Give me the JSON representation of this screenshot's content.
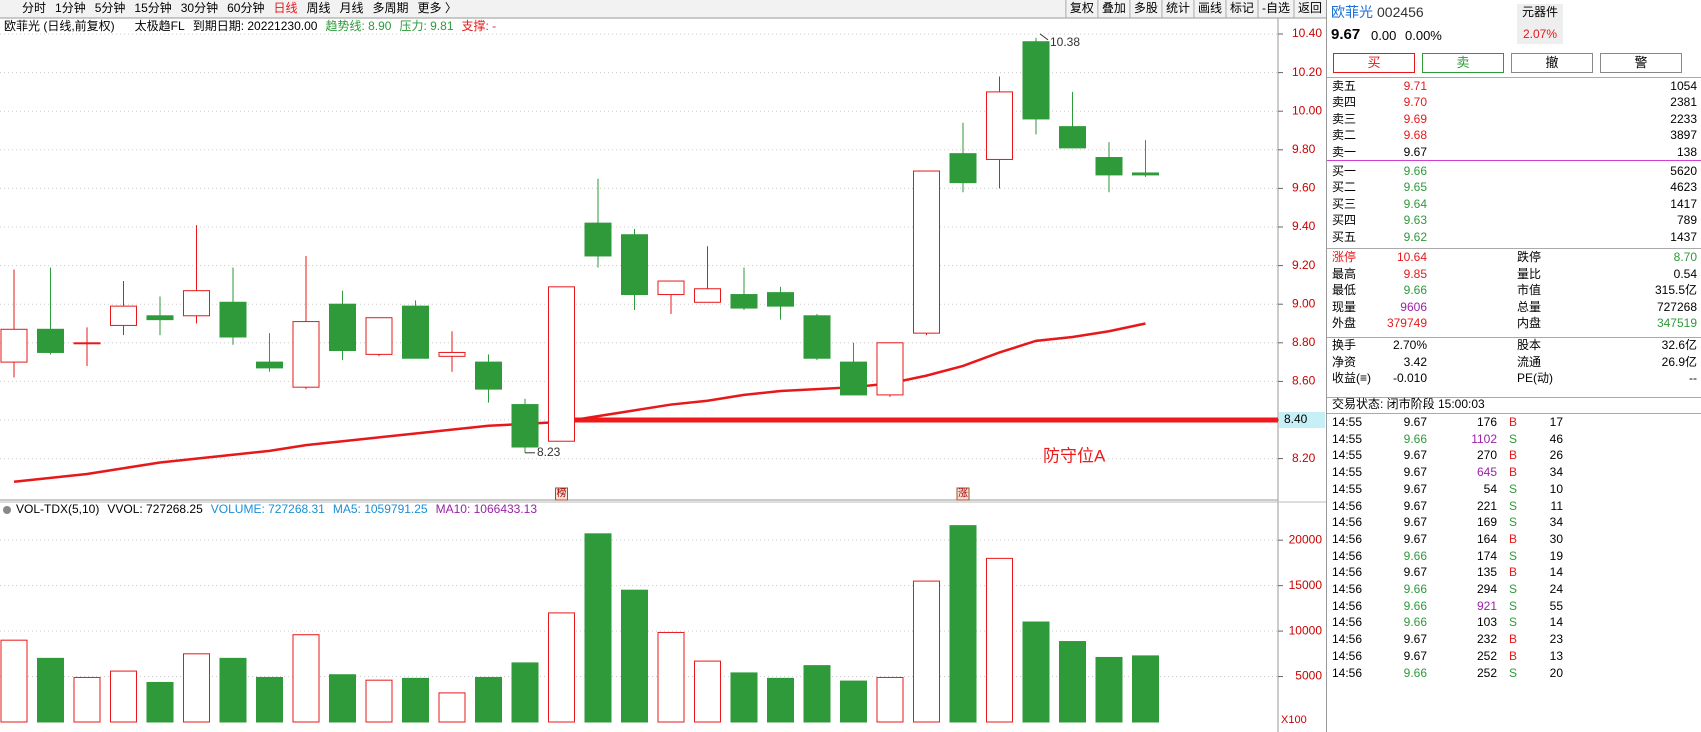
{
  "toolbar": {
    "periods": [
      "分时",
      "1分钟",
      "5分钟",
      "15分钟",
      "30分钟",
      "60分钟",
      "日线",
      "周线",
      "月线",
      "多周期",
      "更多 〉"
    ],
    "active": 6,
    "tools": [
      "复权",
      "叠加",
      "多股",
      "统计",
      "画线",
      "标记",
      "-自选",
      "返回"
    ]
  },
  "info": {
    "name": "欧菲光 (日线,前复权)",
    "indicator": "太极趋FL",
    "expiry": "到期日期: 20221230.00",
    "trend": "趋势线: 8.90",
    "pressure": "压力: 9.81",
    "support": "支撑: -"
  },
  "kline": {
    "type": "candlestick",
    "up_color": "#e8181a",
    "down_color": "#2e9a3a",
    "candles": [
      {
        "open": 8.7,
        "high": 9.18,
        "low": 8.62,
        "close": 8.87
      },
      {
        "open": 8.87,
        "high": 9.19,
        "low": 8.74,
        "close": 8.75
      },
      {
        "open": 8.8,
        "high": 8.88,
        "low": 8.68,
        "close": 8.8
      },
      {
        "open": 8.89,
        "high": 9.12,
        "low": 8.84,
        "close": 8.99
      },
      {
        "open": 8.94,
        "high": 9.04,
        "low": 8.84,
        "close": 8.92
      },
      {
        "open": 8.94,
        "high": 9.41,
        "low": 8.9,
        "close": 9.07
      },
      {
        "open": 9.01,
        "high": 9.19,
        "low": 8.79,
        "close": 8.83
      },
      {
        "open": 8.7,
        "high": 8.85,
        "low": 8.65,
        "close": 8.67
      },
      {
        "open": 8.57,
        "high": 9.25,
        "low": 8.56,
        "close": 8.91
      },
      {
        "open": 9.0,
        "high": 9.07,
        "low": 8.71,
        "close": 8.76
      },
      {
        "open": 8.74,
        "high": 8.93,
        "low": 8.73,
        "close": 8.93
      },
      {
        "open": 8.99,
        "high": 9.02,
        "low": 8.72,
        "close": 8.72
      },
      {
        "open": 8.73,
        "high": 8.86,
        "low": 8.65,
        "close": 8.75
      },
      {
        "open": 8.7,
        "high": 8.74,
        "low": 8.49,
        "close": 8.56
      },
      {
        "open": 8.48,
        "high": 8.51,
        "low": 8.23,
        "close": 8.26
      },
      {
        "open": 8.29,
        "high": 9.09,
        "low": 8.29,
        "close": 9.09
      },
      {
        "open": 9.42,
        "high": 9.65,
        "low": 9.19,
        "close": 9.25
      },
      {
        "open": 9.36,
        "high": 9.39,
        "low": 8.97,
        "close": 9.05
      },
      {
        "open": 9.05,
        "high": 9.12,
        "low": 8.95,
        "close": 9.12
      },
      {
        "open": 9.01,
        "high": 9.3,
        "low": 9.01,
        "close": 9.08
      },
      {
        "open": 9.05,
        "high": 9.19,
        "low": 8.97,
        "close": 8.98
      },
      {
        "open": 9.06,
        "high": 9.09,
        "low": 8.92,
        "close": 8.99
      },
      {
        "open": 8.94,
        "high": 8.95,
        "low": 8.71,
        "close": 8.72
      },
      {
        "open": 8.7,
        "high": 8.8,
        "low": 8.53,
        "close": 8.53
      },
      {
        "open": 8.53,
        "high": 8.8,
        "low": 8.52,
        "close": 8.8
      },
      {
        "open": 8.85,
        "high": 9.69,
        "low": 8.84,
        "close": 9.69
      },
      {
        "open": 9.78,
        "high": 9.94,
        "low": 9.58,
        "close": 9.63
      },
      {
        "open": 9.75,
        "high": 10.18,
        "low": 9.6,
        "close": 10.1
      },
      {
        "open": 10.36,
        "high": 10.38,
        "low": 9.88,
        "close": 9.96
      },
      {
        "open": 9.92,
        "high": 10.1,
        "low": 9.81,
        "close": 9.81
      },
      {
        "open": 9.76,
        "high": 9.84,
        "low": 9.58,
        "close": 9.67
      },
      {
        "open": 9.68,
        "high": 9.85,
        "low": 9.66,
        "close": 9.67
      }
    ],
    "ma": [
      8.08,
      8.1,
      8.12,
      8.15,
      8.18,
      8.2,
      8.22,
      8.24,
      8.27,
      8.29,
      8.31,
      8.33,
      8.35,
      8.37,
      8.38,
      8.39,
      8.42,
      8.45,
      8.48,
      8.5,
      8.53,
      8.55,
      8.56,
      8.57,
      8.59,
      8.63,
      8.68,
      8.75,
      8.81,
      8.83,
      8.86,
      8.9
    ],
    "ma_color": "#e8181a",
    "ylim": [
      8.0,
      10.5
    ],
    "yticks": [
      {
        "value": 8.2,
        "label": "8.20"
      },
      {
        "value": 8.4,
        "label": "8.40"
      },
      {
        "value": 8.6,
        "label": "8.60"
      },
      {
        "value": 8.8,
        "label": "8.80"
      },
      {
        "value": 9.0,
        "label": "9.00"
      },
      {
        "value": 9.2,
        "label": "9.20"
      },
      {
        "value": 9.4,
        "label": "9.40"
      },
      {
        "value": 9.6,
        "label": "9.60"
      },
      {
        "value": 9.8,
        "label": "9.80"
      },
      {
        "value": 10.0,
        "label": "10.00"
      },
      {
        "value": 10.2,
        "label": "10.20"
      },
      {
        "value": 10.4,
        "label": "10.40"
      }
    ],
    "defense": {
      "value": 8.4,
      "label": "8.40",
      "text": "防守位A"
    },
    "markers": [
      {
        "index": 15,
        "label": "榜"
      },
      {
        "index": 26,
        "label": "涨"
      }
    ]
  },
  "volume": {
    "header": [
      "VOL-TDX(5,10)",
      "VVOL: 727268.25",
      "VOLUME: 727268.31",
      "MA5: 1059791.25",
      "MA10: 1066433.13"
    ],
    "values": [
      9000,
      7000,
      4900,
      5600,
      4350,
      7500,
      7000,
      4900,
      9600,
      5200,
      4600,
      4800,
      3200,
      4900,
      6500,
      12000,
      20700,
      14500,
      9850,
      6700,
      5400,
      4800,
      6200,
      4500,
      4900,
      15500,
      21600,
      18000,
      11000,
      8850,
      7100,
      7272.68
    ],
    "ylim": [
      0,
      22000
    ],
    "yticks": [
      5000,
      10000,
      15000,
      20000
    ],
    "unit": "X100"
  },
  "quote": {
    "name": "欧菲光",
    "code": "002456",
    "sector": "元器件",
    "sector_change": "2.07%",
    "price": "9.67",
    "change": "0.00",
    "pct": "0.00%",
    "buttons": [
      "买",
      "卖",
      "撤",
      "警"
    ]
  },
  "asks": [
    [
      "卖五",
      "9.71",
      "1054"
    ],
    [
      "卖四",
      "9.70",
      "2381"
    ],
    [
      "卖三",
      "9.69",
      "2233"
    ],
    [
      "卖二",
      "9.68",
      "3897"
    ],
    [
      "卖一",
      "9.67",
      "138"
    ]
  ],
  "bids": [
    [
      "买一",
      "9.66",
      "5620"
    ],
    [
      "买二",
      "9.65",
      "4623"
    ],
    [
      "买三",
      "9.64",
      "1417"
    ],
    [
      "买四",
      "9.63",
      "789"
    ],
    [
      "买五",
      "9.62",
      "1437"
    ]
  ],
  "stats": [
    [
      [
        "涨停",
        "#e8181a"
      ],
      [
        "10.64",
        "#e8181a"
      ],
      [
        "跌停",
        "#000"
      ],
      [
        "8.70",
        "#2e9a3a"
      ]
    ],
    [
      [
        "最高",
        "#000"
      ],
      [
        "9.85",
        "#e8181a"
      ],
      [
        "量比",
        "#000"
      ],
      [
        "0.54",
        "#000"
      ]
    ],
    [
      [
        "最低",
        "#000"
      ],
      [
        "9.66",
        "#2e9a3a"
      ],
      [
        "市值",
        "#000"
      ],
      [
        "315.5亿",
        "#000"
      ]
    ],
    [
      [
        "现量",
        "#000"
      ],
      [
        "9606",
        "#9b1fa8"
      ],
      [
        "总量",
        "#000"
      ],
      [
        "727268",
        "#000"
      ]
    ],
    [
      [
        "外盘",
        "#000"
      ],
      [
        "379749",
        "#e8181a"
      ],
      [
        "内盘",
        "#000"
      ],
      [
        "347519",
        "#2e9a3a"
      ]
    ],
    [
      [
        "换手",
        "#000"
      ],
      [
        "2.70%",
        "#000"
      ],
      [
        "股本",
        "#000"
      ],
      [
        "32.6亿",
        "#000"
      ]
    ],
    [
      [
        "净资",
        "#000"
      ],
      [
        "3.42",
        "#000"
      ],
      [
        "流通",
        "#000"
      ],
      [
        "26.9亿",
        "#000"
      ]
    ],
    [
      [
        "收益(≡)",
        "#000"
      ],
      [
        "-0.010",
        "#000"
      ],
      [
        "PE(动)",
        "#000"
      ],
      [
        "--",
        "#000"
      ]
    ]
  ],
  "status": "交易状态: 闭市阶段 15:00:03",
  "trades": [
    [
      "14:55",
      "9.67",
      "176",
      "B",
      "17"
    ],
    [
      "14:55",
      "9.66",
      "1102",
      "S",
      "46"
    ],
    [
      "14:55",
      "9.67",
      "270",
      "B",
      "26"
    ],
    [
      "14:55",
      "9.67",
      "645",
      "B",
      "34"
    ],
    [
      "14:55",
      "9.67",
      "54",
      "S",
      "10"
    ],
    [
      "14:56",
      "9.67",
      "221",
      "S",
      "11"
    ],
    [
      "14:56",
      "9.67",
      "169",
      "S",
      "34"
    ],
    [
      "14:56",
      "9.67",
      "164",
      "B",
      "30"
    ],
    [
      "14:56",
      "9.66",
      "174",
      "S",
      "19"
    ],
    [
      "14:56",
      "9.67",
      "135",
      "B",
      "14"
    ],
    [
      "14:56",
      "9.66",
      "294",
      "S",
      "24"
    ],
    [
      "14:56",
      "9.66",
      "921",
      "S",
      "55"
    ],
    [
      "14:56",
      "9.66",
      "103",
      "S",
      "14"
    ],
    [
      "14:56",
      "9.67",
      "232",
      "B",
      "23"
    ],
    [
      "14:56",
      "9.67",
      "252",
      "B",
      "13"
    ],
    [
      "14:56",
      "9.66",
      "252",
      "S",
      "20"
    ]
  ]
}
